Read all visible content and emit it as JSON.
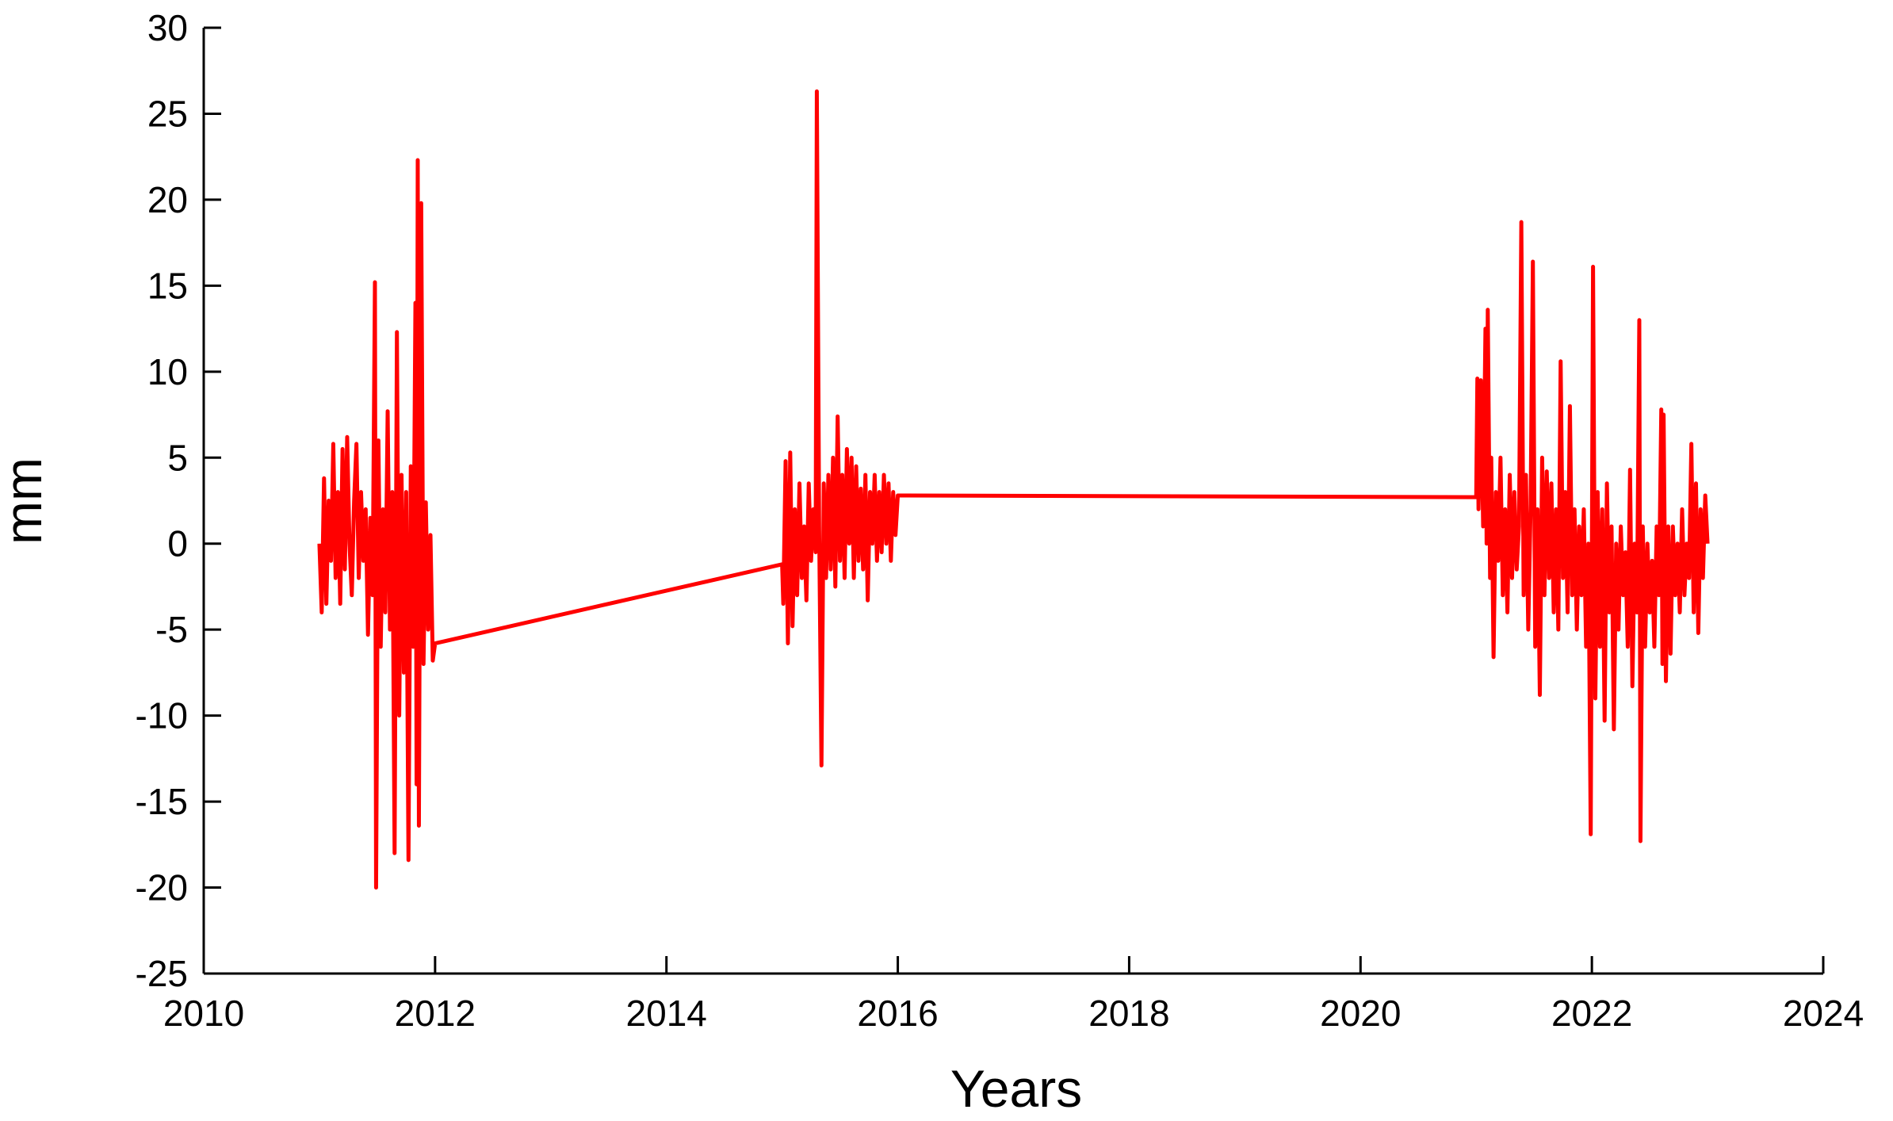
{
  "chart_data": {
    "type": "line",
    "x_label": "Years",
    "y_label": "mm",
    "xlim": [
      2010,
      2024
    ],
    "xticks": [
      2010,
      2012,
      2014,
      2016,
      2018,
      2020,
      2022,
      2024
    ],
    "ylim": [
      -25,
      30
    ],
    "yticks": [
      -25,
      -20,
      -15,
      -10,
      -5,
      0,
      5,
      10,
      15,
      20,
      25,
      30
    ],
    "x": [
      2011.0,
      2011.02,
      2011.04,
      2011.06,
      2011.08,
      2011.1,
      2011.12,
      2011.14,
      2011.16,
      2011.18,
      2011.2,
      2011.22,
      2011.24,
      2011.26,
      2011.28,
      2011.3,
      2011.32,
      2011.34,
      2011.36,
      2011.38,
      2011.4,
      2011.42,
      2011.44,
      2011.46,
      2011.48,
      2011.49,
      2011.51,
      2011.53,
      2011.55,
      2011.57,
      2011.59,
      2011.61,
      2011.63,
      2011.65,
      2011.67,
      2011.69,
      2011.71,
      2011.73,
      2011.75,
      2011.77,
      2011.79,
      2011.81,
      2011.83,
      2011.84,
      2011.85,
      2011.86,
      2011.88,
      2011.9,
      2011.92,
      2011.94,
      2011.96,
      2011.98,
      2012.0,
      2015.0,
      2015.01,
      2015.03,
      2015.05,
      2015.07,
      2015.09,
      2015.11,
      2015.13,
      2015.15,
      2015.17,
      2015.19,
      2015.21,
      2015.23,
      2015.25,
      2015.27,
      2015.29,
      2015.3,
      2015.32,
      2015.34,
      2015.36,
      2015.38,
      2015.4,
      2015.42,
      2015.44,
      2015.46,
      2015.48,
      2015.5,
      2015.52,
      2015.54,
      2015.56,
      2015.58,
      2015.6,
      2015.62,
      2015.64,
      2015.66,
      2015.68,
      2015.7,
      2015.72,
      2015.74,
      2015.76,
      2015.78,
      2015.8,
      2015.82,
      2015.84,
      2015.86,
      2015.88,
      2015.9,
      2015.92,
      2015.94,
      2015.96,
      2015.98,
      2016.0,
      2021.0,
      2021.01,
      2021.02,
      2021.04,
      2021.06,
      2021.08,
      2021.09,
      2021.1,
      2021.12,
      2021.13,
      2021.15,
      2021.17,
      2021.19,
      2021.21,
      2021.23,
      2021.25,
      2021.27,
      2021.29,
      2021.31,
      2021.33,
      2021.35,
      2021.37,
      2021.39,
      2021.41,
      2021.43,
      2021.45,
      2021.47,
      2021.49,
      2021.51,
      2021.53,
      2021.55,
      2021.57,
      2021.59,
      2021.61,
      2021.63,
      2021.65,
      2021.67,
      2021.69,
      2021.71,
      2021.73,
      2021.75,
      2021.77,
      2021.79,
      2021.81,
      2021.83,
      2021.85,
      2021.87,
      2021.89,
      2021.91,
      2021.93,
      2021.95,
      2021.97,
      2021.99,
      2022.01,
      2022.03,
      2022.05,
      2022.07,
      2022.09,
      2022.11,
      2022.13,
      2022.15,
      2022.17,
      2022.19,
      2022.21,
      2022.23,
      2022.25,
      2022.27,
      2022.29,
      2022.31,
      2022.33,
      2022.35,
      2022.37,
      2022.39,
      2022.41,
      2022.42,
      2022.44,
      2022.46,
      2022.48,
      2022.5,
      2022.52,
      2022.54,
      2022.56,
      2022.58,
      2022.6,
      2022.61,
      2022.62,
      2022.64,
      2022.66,
      2022.68,
      2022.7,
      2022.72,
      2022.74,
      2022.76,
      2022.78,
      2022.8,
      2022.82,
      2022.84,
      2022.86,
      2022.88,
      2022.9,
      2022.92,
      2022.94,
      2022.96,
      2022.98,
      2023.0
    ],
    "series": [
      {
        "color": "#ff0000",
        "values": [
          0,
          -4,
          3.8,
          -3.5,
          2.5,
          -1,
          5.8,
          -2,
          3,
          -3.5,
          5.5,
          -1.5,
          6.2,
          0,
          -3,
          2.5,
          5.8,
          -2,
          3,
          -1,
          2,
          -5.3,
          1.5,
          -3,
          15.2,
          -20,
          6,
          -6,
          2,
          -4,
          7.7,
          -5,
          3,
          -18,
          12.3,
          -10,
          4,
          -7.5,
          3,
          -18.4,
          4.5,
          -6,
          14,
          -14,
          22.3,
          -16.4,
          19.8,
          -7,
          2.4,
          -5,
          0.5,
          -6.8,
          -5.8,
          -1.2,
          -3.5,
          4.8,
          -5.8,
          5.3,
          -4.8,
          2,
          -3,
          3.5,
          -2,
          1,
          -3.3,
          3.5,
          -1,
          2,
          -0.5,
          26.3,
          1,
          -12.9,
          3.5,
          -2,
          4,
          -1.5,
          5,
          -2.5,
          7.4,
          -1,
          4,
          -2,
          5.5,
          0,
          5,
          -2,
          4.5,
          -1,
          3.2,
          -1.5,
          4,
          -3.3,
          3,
          0,
          4,
          -1,
          3,
          -0.5,
          4,
          0,
          3.5,
          -1,
          3,
          0.5,
          2.8,
          2.7,
          9.6,
          2,
          9.5,
          1,
          12.5,
          0,
          13.6,
          -2,
          5,
          -6.6,
          3,
          -1,
          5,
          -3,
          2,
          -4,
          4,
          -2,
          3,
          -1.5,
          1,
          18.7,
          -3,
          4,
          -5,
          2,
          16.4,
          -6,
          2,
          -8.8,
          5,
          -3,
          4.2,
          -2,
          3.5,
          -4,
          2,
          -5,
          10.6,
          -2,
          3,
          -4,
          8,
          -3,
          2,
          -5,
          1,
          -3,
          2,
          -6,
          0,
          -16.9,
          16.1,
          -9,
          3,
          -6,
          2,
          -10.3,
          3.5,
          -4,
          1,
          -10.8,
          0,
          -5,
          1,
          -3,
          -0.5,
          -6,
          4.3,
          -8.3,
          0,
          -4,
          13,
          -17.3,
          1,
          -6,
          0,
          -4,
          -1,
          -6,
          1,
          -3,
          7.8,
          -7,
          7.5,
          -8,
          1,
          -6.4,
          1,
          -3,
          0,
          -4,
          2,
          -3,
          0,
          -2,
          5.8,
          -4,
          3.5,
          -5.2,
          2,
          -2,
          2.8,
          0
        ]
      }
    ]
  }
}
